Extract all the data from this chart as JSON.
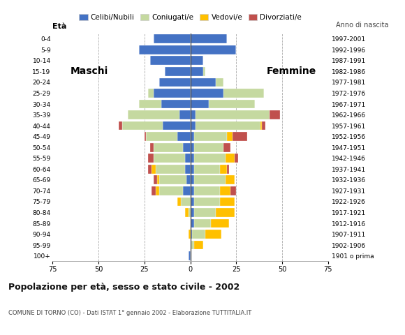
{
  "age_groups": [
    "100+",
    "95-99",
    "90-94",
    "85-89",
    "80-84",
    "75-79",
    "70-74",
    "65-69",
    "60-64",
    "55-59",
    "50-54",
    "45-49",
    "40-44",
    "35-39",
    "30-34",
    "25-29",
    "20-24",
    "15-19",
    "10-14",
    "5-9",
    "0-4"
  ],
  "birth_years": [
    "1901 o prima",
    "1902-1906",
    "1907-1911",
    "1912-1916",
    "1917-1921",
    "1922-1926",
    "1927-1931",
    "1932-1936",
    "1937-1941",
    "1942-1946",
    "1947-1951",
    "1952-1956",
    "1957-1961",
    "1962-1966",
    "1967-1971",
    "1972-1976",
    "1977-1981",
    "1982-1986",
    "1987-1991",
    "1992-1996",
    "1997-2001"
  ],
  "male_celibe": [
    1,
    0,
    0,
    0,
    0,
    0,
    4,
    2,
    3,
    3,
    4,
    7,
    15,
    6,
    16,
    20,
    17,
    14,
    22,
    28,
    20
  ],
  "male_coniugato": [
    0,
    0,
    0,
    0,
    1,
    5,
    13,
    15,
    16,
    17,
    16,
    17,
    22,
    28,
    12,
    3,
    0,
    0,
    0,
    0,
    0
  ],
  "male_vedovo": [
    0,
    0,
    1,
    0,
    2,
    2,
    2,
    1,
    2,
    0,
    0,
    0,
    0,
    0,
    0,
    0,
    0,
    0,
    0,
    0,
    0
  ],
  "male_divorziato": [
    0,
    0,
    0,
    0,
    0,
    0,
    2,
    2,
    2,
    3,
    2,
    1,
    2,
    0,
    0,
    0,
    0,
    0,
    0,
    0,
    0
  ],
  "female_nubile": [
    0,
    0,
    1,
    2,
    2,
    2,
    2,
    2,
    2,
    2,
    2,
    2,
    3,
    3,
    10,
    18,
    14,
    7,
    7,
    25,
    20
  ],
  "female_coniugata": [
    0,
    2,
    7,
    9,
    12,
    14,
    14,
    17,
    14,
    17,
    16,
    18,
    35,
    40,
    25,
    22,
    4,
    1,
    0,
    0,
    0
  ],
  "female_vedova": [
    0,
    5,
    9,
    10,
    10,
    8,
    6,
    5,
    4,
    5,
    0,
    3,
    1,
    0,
    0,
    0,
    0,
    0,
    0,
    0,
    0
  ],
  "female_divorziata": [
    0,
    0,
    0,
    0,
    0,
    0,
    3,
    0,
    1,
    2,
    4,
    8,
    2,
    6,
    0,
    0,
    0,
    0,
    0,
    0,
    0
  ],
  "colors": {
    "celibe": "#4472c4",
    "coniugato": "#c5d9a0",
    "vedovo": "#ffc000",
    "divorziato": "#c0504d"
  },
  "xlim": 75,
  "title": "Popolazione per età, sesso e stato civile - 2002",
  "subtitle": "COMUNE DI TORNO (CO) - Dati ISTAT 1° gennaio 2002 - Elaborazione TUTTITALIA.IT",
  "ylabel_left": "Età",
  "label_right": "Anno di nascita",
  "label_maschi": "Maschi",
  "label_femmine": "Femmine",
  "legend_labels": [
    "Celibi/Nubili",
    "Coniugati/e",
    "Vedovi/e",
    "Divorziati/e"
  ]
}
